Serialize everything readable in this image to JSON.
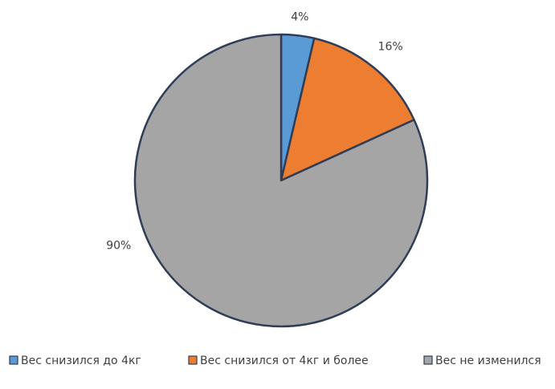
{
  "chart_data": {
    "type": "pie",
    "categories": [
      "Вес снизился до 4кг",
      "Вес снизился от 4кг и более",
      "Вес не изменился"
    ],
    "values": [
      4,
      16,
      90
    ],
    "value_labels": [
      "4%",
      "16%",
      "90%"
    ],
    "colors": [
      "#5b9bd5",
      "#ed7d31",
      "#a5a5a5"
    ],
    "legend": "bottom"
  }
}
